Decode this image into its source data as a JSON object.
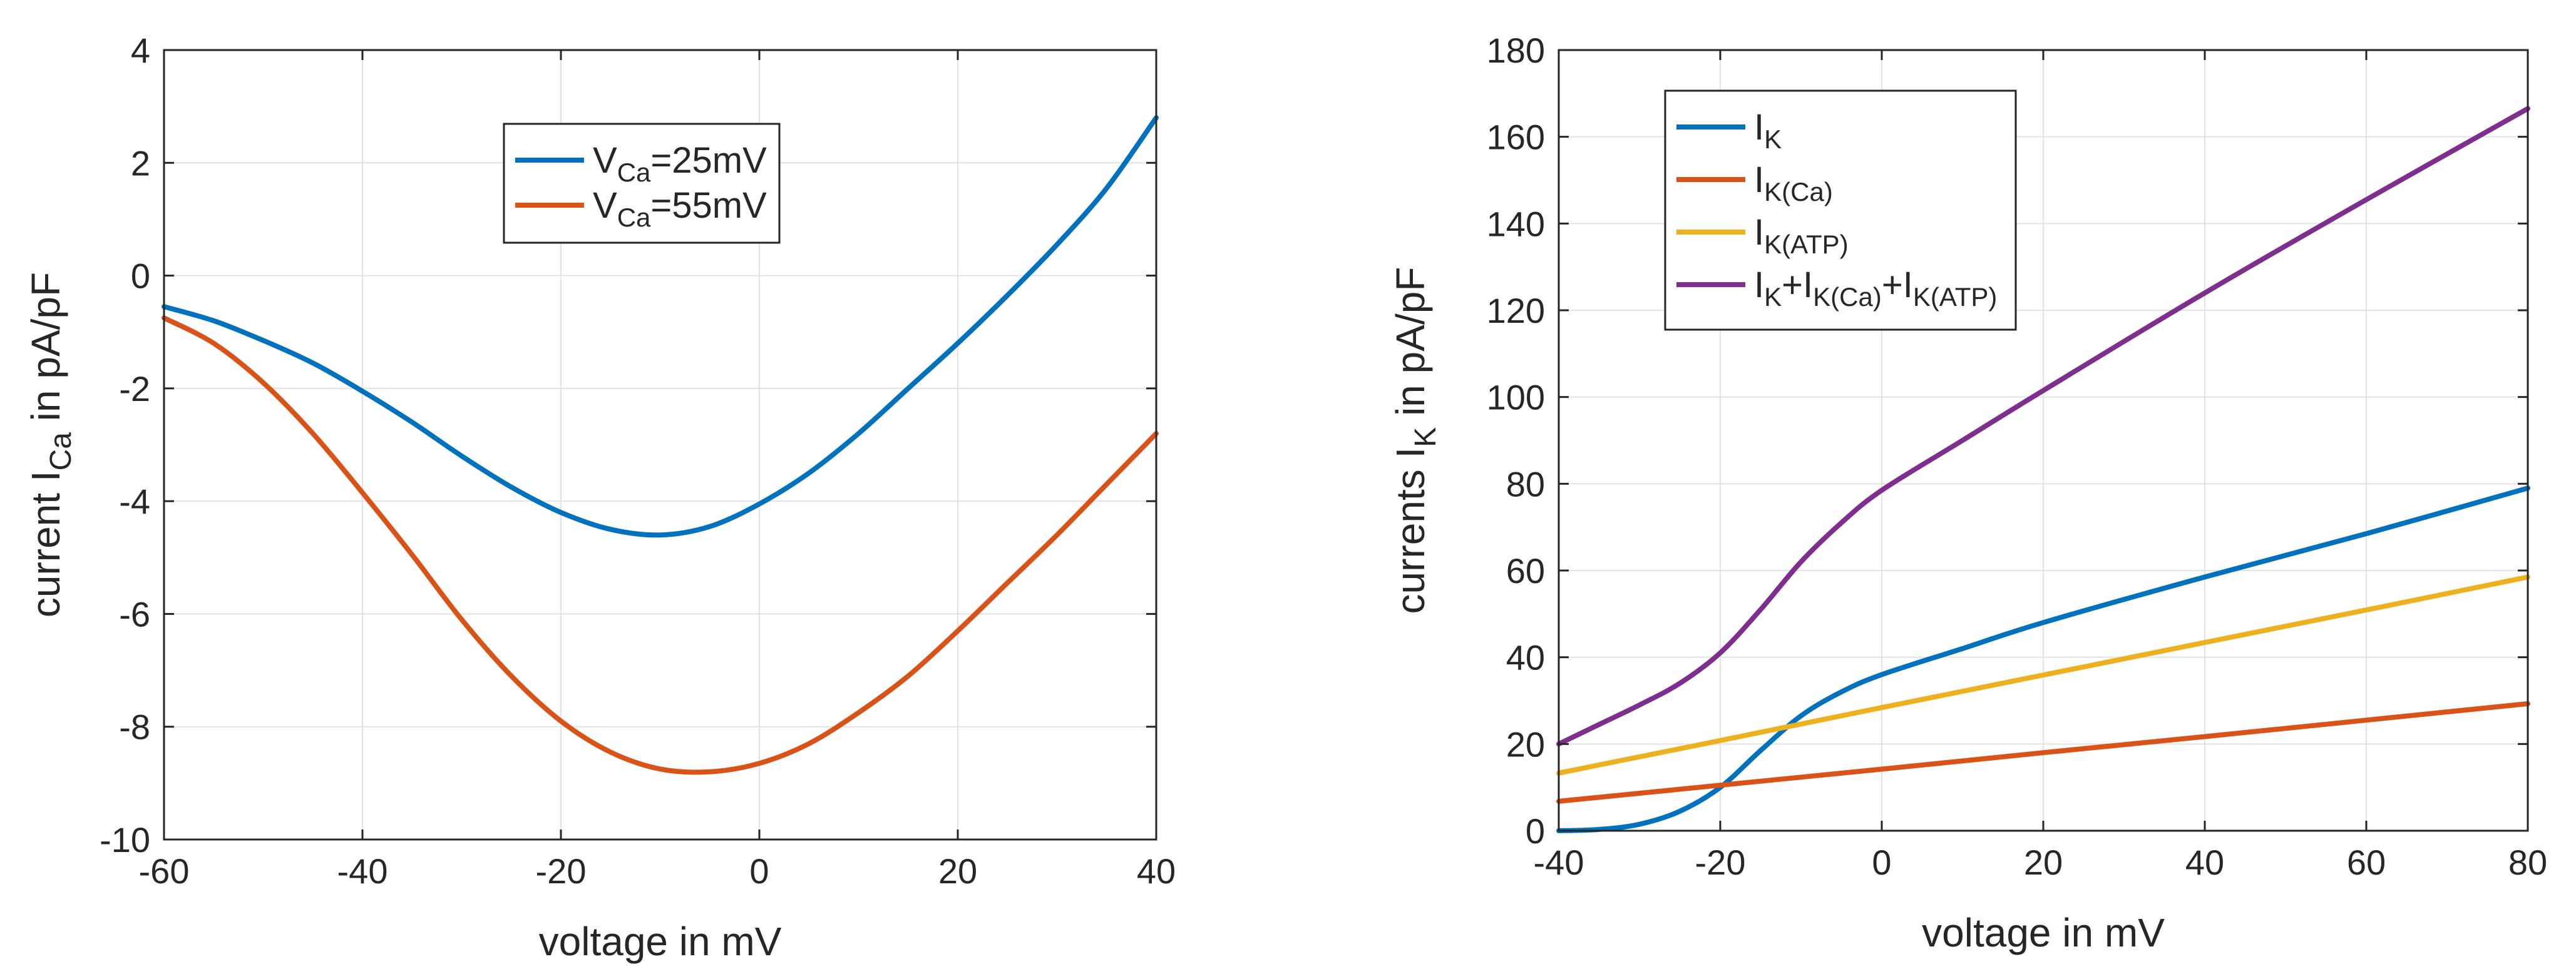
{
  "colors": {
    "blue": "#0072BD",
    "orange": "#D95319",
    "yellow": "#EDB120",
    "purple": "#7E2F8E"
  },
  "chart_data": [
    {
      "type": "line",
      "xlabel": "voltage in mV",
      "ylabel": {
        "base": "current I",
        "sub": "Ca",
        "suffix": " in pA/pF"
      },
      "xlim": [
        -60,
        40
      ],
      "ylim": [
        -10,
        4
      ],
      "xticks": [
        "-60",
        "-40",
        "-20",
        "0",
        "20",
        "40"
      ],
      "yticks": [
        "-10",
        "-8",
        "-6",
        "-4",
        "-2",
        "0",
        "2",
        "4"
      ],
      "grid": true,
      "legend_position": "top-center",
      "series": [
        {
          "name": "VCa=25mV",
          "legend": [
            {
              "t": "V",
              "s": 0
            },
            {
              "t": "Ca",
              "s": 1
            },
            {
              "t": "=25mV",
              "s": 0
            }
          ],
          "color": "#0072BD",
          "x": [
            -60,
            -55,
            -50,
            -45,
            -40,
            -35,
            -30,
            -25,
            -20,
            -15,
            -10,
            -5,
            0,
            5,
            10,
            15,
            20,
            25,
            30,
            35,
            40
          ],
          "y": [
            -0.55,
            -0.8,
            -1.15,
            -1.55,
            -2.05,
            -2.6,
            -3.2,
            -3.75,
            -4.2,
            -4.5,
            -4.6,
            -4.45,
            -4.05,
            -3.5,
            -2.8,
            -2.0,
            -1.2,
            -0.35,
            0.55,
            1.55,
            2.8
          ]
        },
        {
          "name": "VCa=55mV",
          "legend": [
            {
              "t": "V",
              "s": 0
            },
            {
              "t": "Ca",
              "s": 1
            },
            {
              "t": "=55mV",
              "s": 0
            }
          ],
          "color": "#D95319",
          "x": [
            -60,
            -55,
            -50,
            -45,
            -40,
            -35,
            -30,
            -25,
            -20,
            -15,
            -10,
            -5,
            0,
            5,
            10,
            15,
            20,
            25,
            30,
            35,
            40
          ],
          "y": [
            -0.75,
            -1.2,
            -1.9,
            -2.8,
            -3.85,
            -4.95,
            -6.1,
            -7.1,
            -7.9,
            -8.45,
            -8.75,
            -8.8,
            -8.65,
            -8.3,
            -7.75,
            -7.1,
            -6.3,
            -5.45,
            -4.6,
            -3.7,
            -2.8
          ]
        }
      ]
    },
    {
      "type": "line",
      "xlabel": "voltage in mV",
      "ylabel": {
        "base": "currents I",
        "sub": "K",
        "suffix": " in pA/pF"
      },
      "xlim": [
        -40,
        80
      ],
      "ylim": [
        0,
        180
      ],
      "xticks": [
        "-40",
        "-20",
        "0",
        "20",
        "40",
        "60",
        "80"
      ],
      "yticks": [
        "0",
        "20",
        "40",
        "60",
        "80",
        "100",
        "120",
        "140",
        "160",
        "180"
      ],
      "grid": true,
      "legend_position": "top-left",
      "series": [
        {
          "name": "IK",
          "legend": [
            {
              "t": "I",
              "s": 0
            },
            {
              "t": "K",
              "s": 1
            }
          ],
          "color": "#0072BD",
          "x": [
            -40,
            -35,
            -30,
            -25,
            -20,
            -15,
            -10,
            -5,
            0,
            10,
            20,
            40,
            60,
            80
          ],
          "y": [
            0,
            0.3,
            1.5,
            4.5,
            10,
            18.5,
            26.5,
            32,
            36,
            42,
            48,
            58.5,
            68.5,
            79
          ]
        },
        {
          "name": "IK(Ca)",
          "legend": [
            {
              "t": "I",
              "s": 0
            },
            {
              "t": "K(Ca)",
              "s": 1
            }
          ],
          "color": "#D95319",
          "x": [
            -40,
            -20,
            0,
            20,
            40,
            60,
            80
          ],
          "y": [
            6.8,
            10.5,
            14.2,
            18,
            21.7,
            25.5,
            29.3
          ]
        },
        {
          "name": "IK(ATP)",
          "legend": [
            {
              "t": "I",
              "s": 0
            },
            {
              "t": "K(ATP)",
              "s": 1
            }
          ],
          "color": "#EDB120",
          "x": [
            -40,
            -20,
            0,
            20,
            40,
            60,
            80
          ],
          "y": [
            13.3,
            20.8,
            28.4,
            35.9,
            43.4,
            50.9,
            58.5
          ]
        },
        {
          "name": "IK+IK(Ca)+IK(ATP)",
          "legend": [
            {
              "t": "I",
              "s": 0
            },
            {
              "t": "K",
              "s": 1
            },
            {
              "t": "+I",
              "s": 0
            },
            {
              "t": "K(Ca)",
              "s": 1
            },
            {
              "t": "+I",
              "s": 0
            },
            {
              "t": "K(ATP)",
              "s": 1
            }
          ],
          "color": "#7E2F8E",
          "x": [
            -40,
            -35,
            -30,
            -25,
            -20,
            -15,
            -10,
            -5,
            0,
            10,
            20,
            40,
            60,
            80
          ],
          "y": [
            20,
            24.5,
            29,
            34,
            41,
            51,
            62,
            71,
            78.5,
            90,
            101.5,
            124,
            145.5,
            166.5
          ]
        }
      ]
    }
  ]
}
